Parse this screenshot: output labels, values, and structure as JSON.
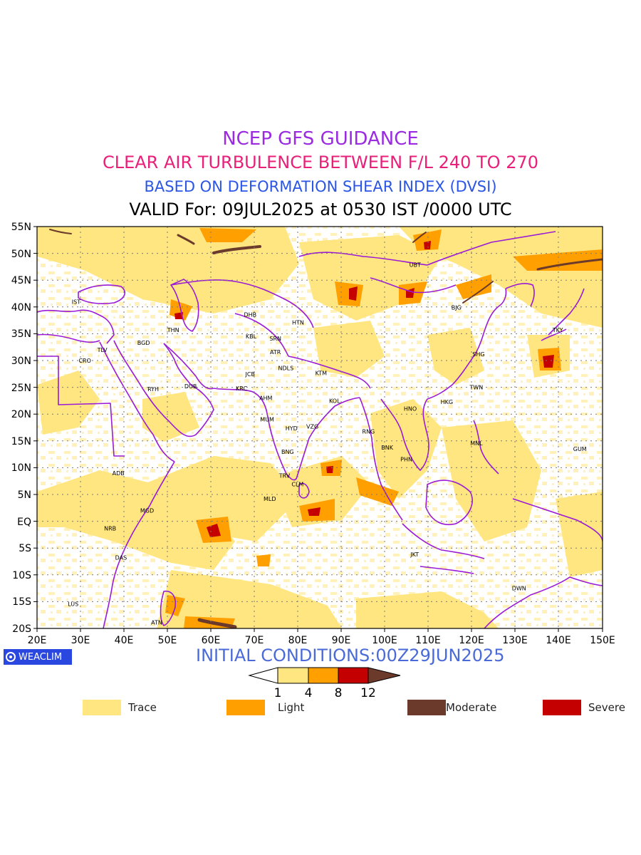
{
  "titles": {
    "line1": "NCEP GFS GUIDANCE",
    "line2": "CLEAR AIR TURBULENCE BETWEEN F/L 240 TO 270",
    "line3": "BASED ON DEFORMATION SHEAR INDEX (DVSI)",
    "line4": "VALID For: 09JUL2025 at 0530 IST /0000 UTC"
  },
  "colors": {
    "title1": "#9a2be0",
    "title2": "#e8207a",
    "title3": "#2a55e6",
    "boundaries": "#9a1ad6",
    "trace": "#ffe680",
    "light": "#ffa000",
    "moderate": "#6b3a2a",
    "severe": "#c40000",
    "badge": "#2a48e0",
    "initial": "#4a6ad8"
  },
  "map": {
    "lon_labels": [
      "20E",
      "30E",
      "40E",
      "50E",
      "60E",
      "70E",
      "80E",
      "90E",
      "100E",
      "110E",
      "120E",
      "130E",
      "140E",
      "150E"
    ],
    "lat_labels": [
      "55N",
      "50N",
      "45N",
      "40N",
      "35N",
      "30N",
      "25N",
      "20N",
      "15N",
      "10N",
      "5N",
      "EQ",
      "5S",
      "10S",
      "15S",
      "20S"
    ],
    "stations": [
      {
        "code": "IST",
        "lon": 29,
        "lat": 41
      },
      {
        "code": "TLV",
        "lon": 35,
        "lat": 32
      },
      {
        "code": "CRO",
        "lon": 31,
        "lat": 30
      },
      {
        "code": "BGD",
        "lon": 44.5,
        "lat": 33.3
      },
      {
        "code": "THN",
        "lon": 51.3,
        "lat": 35.7
      },
      {
        "code": "RYH",
        "lon": 46.7,
        "lat": 24.7
      },
      {
        "code": "DUB",
        "lon": 55.3,
        "lat": 25.2
      },
      {
        "code": "DHB",
        "lon": 69,
        "lat": 38.6
      },
      {
        "code": "KBL",
        "lon": 69.2,
        "lat": 34.5
      },
      {
        "code": "SRN",
        "lon": 74.8,
        "lat": 34.1
      },
      {
        "code": "HTN",
        "lon": 80,
        "lat": 37.1
      },
      {
        "code": "ATR",
        "lon": 74.8,
        "lat": 31.6
      },
      {
        "code": "JCB",
        "lon": 69,
        "lat": 27.5
      },
      {
        "code": "NDLS",
        "lon": 77.2,
        "lat": 28.6
      },
      {
        "code": "KTM",
        "lon": 85.3,
        "lat": 27.7
      },
      {
        "code": "KRC",
        "lon": 67,
        "lat": 24.8
      },
      {
        "code": "AHM",
        "lon": 72.6,
        "lat": 23
      },
      {
        "code": "KOL",
        "lon": 88.4,
        "lat": 22.5
      },
      {
        "code": "MUM",
        "lon": 72.9,
        "lat": 19
      },
      {
        "code": "HYD",
        "lon": 78.5,
        "lat": 17.4
      },
      {
        "code": "VZG",
        "lon": 83.3,
        "lat": 17.7
      },
      {
        "code": "RNG",
        "lon": 96.2,
        "lat": 16.8
      },
      {
        "code": "HNO",
        "lon": 105.8,
        "lat": 21
      },
      {
        "code": "HKG",
        "lon": 114.2,
        "lat": 22.3
      },
      {
        "code": "TWN",
        "lon": 121,
        "lat": 25
      },
      {
        "code": "SHG",
        "lon": 121.5,
        "lat": 31.2
      },
      {
        "code": "BJG",
        "lon": 116.4,
        "lat": 39.9
      },
      {
        "code": "UBT",
        "lon": 106.9,
        "lat": 47.9
      },
      {
        "code": "TKY",
        "lon": 139.7,
        "lat": 35.7
      },
      {
        "code": "BNK",
        "lon": 100.5,
        "lat": 13.8
      },
      {
        "code": "PHN",
        "lon": 104.9,
        "lat": 11.6
      },
      {
        "code": "MNL",
        "lon": 121,
        "lat": 14.6
      },
      {
        "code": "GUM",
        "lon": 144.8,
        "lat": 13.5
      },
      {
        "code": "BNG",
        "lon": 77.6,
        "lat": 13
      },
      {
        "code": "TRV",
        "lon": 76.9,
        "lat": 8.5
      },
      {
        "code": "CLM",
        "lon": 79.9,
        "lat": 6.9
      },
      {
        "code": "MLD",
        "lon": 73.5,
        "lat": 4.2
      },
      {
        "code": "ADB",
        "lon": 38.7,
        "lat": 9
      },
      {
        "code": "MGD",
        "lon": 45.3,
        "lat": 2
      },
      {
        "code": "NRB",
        "lon": 36.8,
        "lat": -1.3
      },
      {
        "code": "DAS",
        "lon": 39.3,
        "lat": -6.8
      },
      {
        "code": "LUS",
        "lon": 28.3,
        "lat": -15.4
      },
      {
        "code": "ATN",
        "lon": 47.5,
        "lat": -18.9
      },
      {
        "code": "JKT",
        "lon": 106.8,
        "lat": -6.2
      },
      {
        "code": "DWN",
        "lon": 130.8,
        "lat": -12.5
      }
    ]
  },
  "initial_conditions": "INITIAL CONDITIONS:00Z29JUN2025",
  "badge": "WEACLIM",
  "colorbar": {
    "ticks": [
      "1",
      "4",
      "8",
      "12"
    ]
  },
  "legend": [
    {
      "label": "Trace",
      "color": "#ffe680"
    },
    {
      "label": "Light",
      "color": "#ffa000"
    },
    {
      "label": "Moderate",
      "color": "#6b3a2a"
    },
    {
      "label": "Severe",
      "color": "#c40000"
    }
  ]
}
